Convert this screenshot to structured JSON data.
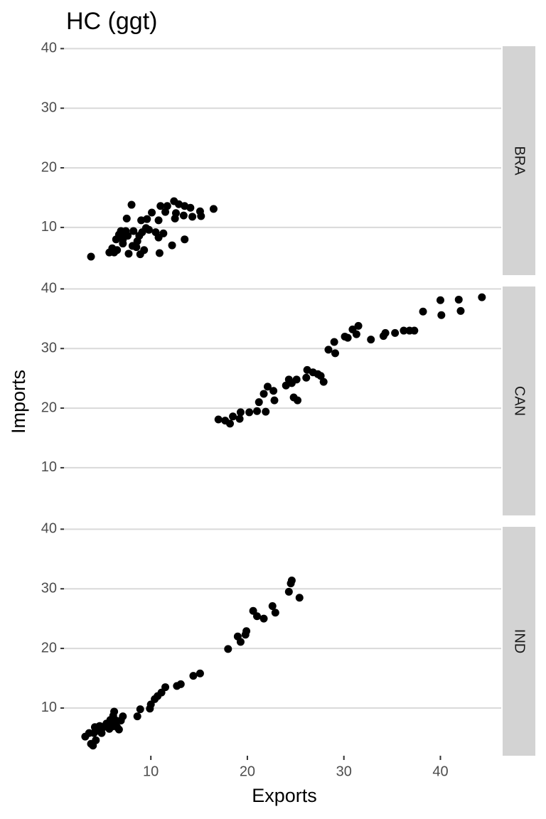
{
  "chart_data": {
    "type": "scatter",
    "title": "HC (ggt)",
    "x_label": "Exports",
    "y_label": "Imports",
    "color": "#000000",
    "grid": true,
    "xlim": [
      1.0,
      46.3
    ],
    "xticks": [
      10,
      20,
      30,
      40
    ],
    "facets": [
      {
        "name": "BRA",
        "ylim": [
          2.0,
          40.4
        ],
        "yticks": [
          10,
          20,
          30,
          40
        ],
        "x": [
          3.8,
          5.7,
          6.0,
          6.2,
          6.4,
          6.5,
          6.7,
          6.9,
          7.1,
          7.1,
          7.3,
          7.4,
          7.5,
          7.6,
          7.7,
          8.0,
          8.1,
          8.2,
          8.5,
          8.6,
          8.8,
          8.9,
          9.0,
          9.1,
          9.3,
          9.5,
          9.6,
          9.8,
          10.1,
          10.5,
          10.8,
          10.8,
          10.9,
          11.0,
          11.3,
          11.5,
          11.7,
          12.2,
          12.4,
          12.5,
          12.6,
          12.9,
          13.4,
          13.5,
          13.5,
          14.1,
          14.3,
          15.1,
          15.2,
          16.5
        ],
        "y": [
          5.1,
          5.8,
          6.5,
          5.8,
          8.0,
          6.2,
          8.8,
          9.4,
          7.3,
          8.0,
          8.8,
          9.4,
          11.5,
          8.6,
          5.6,
          13.8,
          6.9,
          9.4,
          6.7,
          7.7,
          8.6,
          5.5,
          11.2,
          9.2,
          6.2,
          9.9,
          11.4,
          9.6,
          12.5,
          9.2,
          8.3,
          11.2,
          5.7,
          13.6,
          9.0,
          12.6,
          13.6,
          7.0,
          14.4,
          11.5,
          12.4,
          13.9,
          12.0,
          13.6,
          8.0,
          13.3,
          11.8,
          12.7,
          11.9,
          13.1
        ]
      },
      {
        "name": "CAN",
        "ylim": [
          2.0,
          40.4
        ],
        "yticks": [
          10,
          20,
          30,
          40
        ],
        "x": [
          17.0,
          17.7,
          18.2,
          18.5,
          19.2,
          19.3,
          20.2,
          21.0,
          21.2,
          21.7,
          21.9,
          22.1,
          22.7,
          22.8,
          24.0,
          24.3,
          24.6,
          24.8,
          25.1,
          25.2,
          26.1,
          26.2,
          26.8,
          27.3,
          27.6,
          27.9,
          28.4,
          29.0,
          29.1,
          30.1,
          30.4,
          30.9,
          31.3,
          31.5,
          32.8,
          34.1,
          34.3,
          35.3,
          36.2,
          36.8,
          37.3,
          38.2,
          40.0,
          40.1,
          41.9,
          42.1,
          44.3
        ],
        "y": [
          18.1,
          17.9,
          17.4,
          18.6,
          18.2,
          19.3,
          19.3,
          19.5,
          21.0,
          22.4,
          19.4,
          23.6,
          22.9,
          21.3,
          23.8,
          24.8,
          24.2,
          21.8,
          24.8,
          21.3,
          25.1,
          26.4,
          26.0,
          25.7,
          25.4,
          24.4,
          29.8,
          31.1,
          29.2,
          32.0,
          31.8,
          33.2,
          32.4,
          33.8,
          31.5,
          32.1,
          32.6,
          32.6,
          33.0,
          33.0,
          33.0,
          36.2,
          38.1,
          35.6,
          38.2,
          36.3,
          38.6
        ]
      },
      {
        "name": "IND",
        "ylim": [
          2.0,
          40.4
        ],
        "yticks": [
          10,
          20,
          30,
          40
        ],
        "x": [
          3.2,
          3.6,
          3.8,
          4.0,
          4.1,
          4.3,
          4.2,
          4.5,
          4.7,
          4.9,
          5.1,
          5.4,
          5.7,
          5.8,
          6.0,
          6.1,
          6.2,
          6.4,
          6.5,
          6.7,
          6.9,
          7.1,
          8.6,
          8.9,
          9.9,
          10.0,
          10.4,
          10.7,
          11.1,
          11.5,
          12.7,
          13.1,
          14.4,
          15.1,
          18.0,
          19.0,
          19.3,
          19.8,
          19.9,
          20.6,
          21.0,
          21.7,
          22.6,
          22.9,
          24.3,
          24.6,
          24.5,
          25.4
        ],
        "y": [
          5.2,
          5.8,
          4.0,
          3.7,
          5.8,
          4.6,
          6.8,
          6.2,
          7.0,
          5.8,
          6.8,
          7.4,
          6.5,
          8.0,
          6.9,
          8.7,
          9.4,
          7.9,
          6.8,
          6.4,
          7.9,
          8.6,
          8.6,
          9.8,
          9.9,
          10.6,
          11.5,
          12.0,
          12.6,
          13.5,
          13.7,
          14.0,
          15.4,
          15.8,
          19.9,
          22.0,
          21.1,
          22.3,
          22.9,
          26.3,
          25.4,
          25.0,
          27.1,
          26.0,
          29.5,
          31.4,
          30.9,
          28.5
        ]
      }
    ]
  }
}
